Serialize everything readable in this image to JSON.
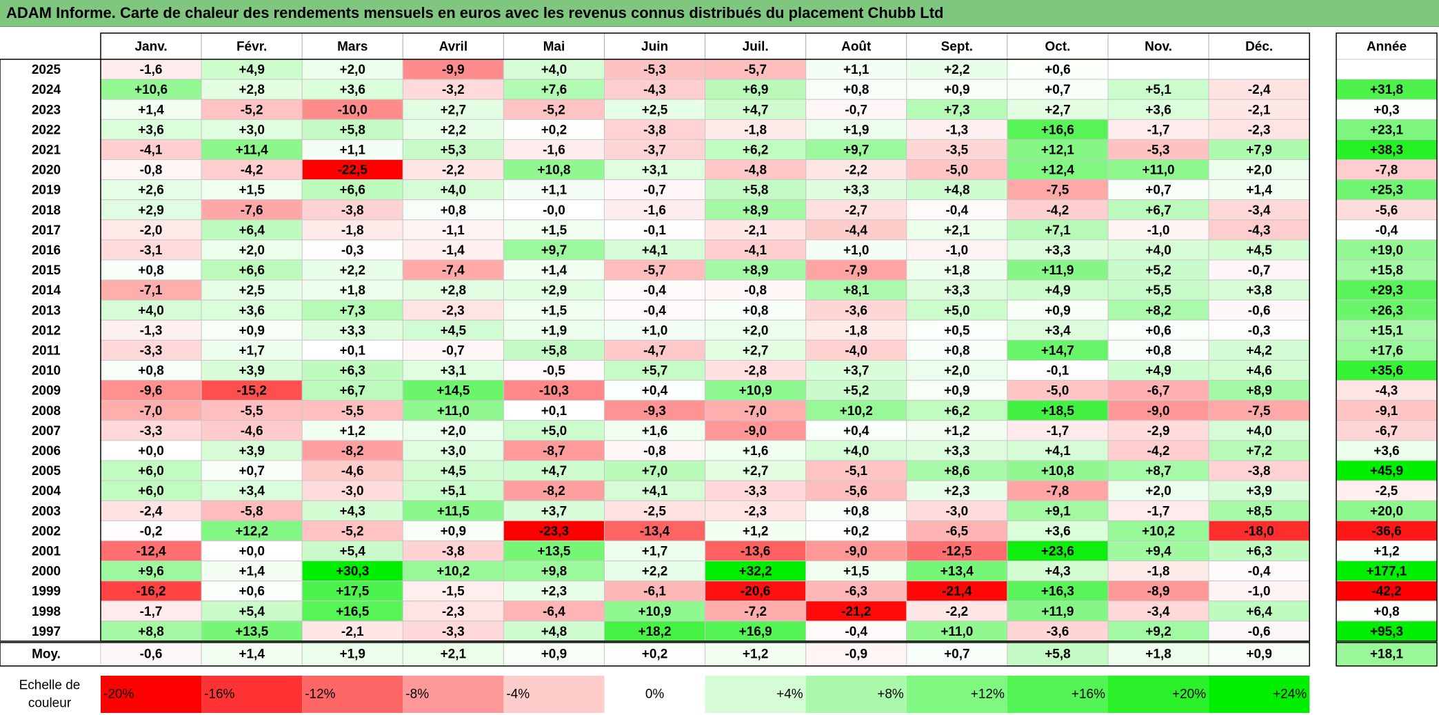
{
  "title": "ADAM Informe. Carte de chaleur des rendements mensuels en euros avec les revenus connus distribués du placement Chubb Ltd",
  "chart_data": {
    "type": "heatmap",
    "title": "ADAM Informe. Carte de chaleur des rendements mensuels en euros avec les revenus connus distribués du placement Chubb Ltd",
    "months": [
      "Janv.",
      "Févr.",
      "Mars",
      "Avril",
      "Mai",
      "Juin",
      "Juil.",
      "Août",
      "Sept.",
      "Oct.",
      "Nov.",
      "Déc."
    ],
    "year_label": "Année",
    "rows": [
      {
        "year": "2025",
        "values": [
          "-1,6",
          "+4,9",
          "+2,0",
          "-9,9",
          "+4,0",
          "-5,3",
          "-5,7",
          "+1,1",
          "+2,2",
          "+0,6",
          "",
          ""
        ],
        "annual": ""
      },
      {
        "year": "2024",
        "values": [
          "+10,6",
          "+2,8",
          "+3,6",
          "-3,2",
          "+7,6",
          "-4,3",
          "+6,9",
          "+0,8",
          "+0,9",
          "+0,7",
          "+5,1",
          "-2,4"
        ],
        "annual": "+31,8"
      },
      {
        "year": "2023",
        "values": [
          "+1,4",
          "-5,2",
          "-10,0",
          "+2,7",
          "-5,2",
          "+2,5",
          "+4,7",
          "-0,7",
          "+7,3",
          "+2,7",
          "+3,6",
          "-2,1"
        ],
        "annual": "+0,3"
      },
      {
        "year": "2022",
        "values": [
          "+3,6",
          "+3,0",
          "+5,8",
          "+2,2",
          "+0,2",
          "-3,8",
          "-1,8",
          "+1,9",
          "-1,3",
          "+16,6",
          "-1,7",
          "-2,3"
        ],
        "annual": "+23,1"
      },
      {
        "year": "2021",
        "values": [
          "-4,1",
          "+11,4",
          "+1,1",
          "+5,3",
          "-1,6",
          "-3,7",
          "+6,2",
          "+9,7",
          "-3,5",
          "+12,1",
          "-5,3",
          "+7,9"
        ],
        "annual": "+38,3"
      },
      {
        "year": "2020",
        "values": [
          "-0,8",
          "-4,2",
          "-22,5",
          "-2,2",
          "+10,8",
          "+3,1",
          "-4,8",
          "-2,2",
          "-5,0",
          "+12,4",
          "+11,0",
          "+2,0"
        ],
        "annual": "-7,8"
      },
      {
        "year": "2019",
        "values": [
          "+2,6",
          "+1,5",
          "+6,6",
          "+4,0",
          "+1,1",
          "-0,7",
          "+5,8",
          "+3,3",
          "+4,8",
          "-7,5",
          "+0,7",
          "+1,4"
        ],
        "annual": "+25,3"
      },
      {
        "year": "2018",
        "values": [
          "+2,9",
          "-7,6",
          "-3,8",
          "+0,8",
          "-0,0",
          "-1,6",
          "+8,9",
          "-2,7",
          "-0,4",
          "-4,2",
          "+6,7",
          "-3,4"
        ],
        "annual": "-5,6"
      },
      {
        "year": "2017",
        "values": [
          "-2,0",
          "+6,4",
          "-1,8",
          "-1,1",
          "+1,5",
          "-0,1",
          "-2,1",
          "-4,4",
          "+2,1",
          "+7,1",
          "-1,0",
          "-4,3"
        ],
        "annual": "-0,4"
      },
      {
        "year": "2016",
        "values": [
          "-3,1",
          "+2,0",
          "-0,3",
          "-1,4",
          "+9,7",
          "+4,1",
          "-4,1",
          "+1,0",
          "-1,0",
          "+3,3",
          "+4,0",
          "+4,5"
        ],
        "annual": "+19,0"
      },
      {
        "year": "2015",
        "values": [
          "+0,8",
          "+6,6",
          "+2,2",
          "-7,4",
          "+1,4",
          "-5,7",
          "+8,9",
          "-7,9",
          "+1,8",
          "+11,9",
          "+5,2",
          "-0,7"
        ],
        "annual": "+15,8"
      },
      {
        "year": "2014",
        "values": [
          "-7,1",
          "+2,5",
          "+1,8",
          "+2,8",
          "+2,9",
          "-0,4",
          "-0,8",
          "+8,1",
          "+3,3",
          "+4,9",
          "+5,5",
          "+3,8"
        ],
        "annual": "+29,3"
      },
      {
        "year": "2013",
        "values": [
          "+4,0",
          "+3,6",
          "+7,3",
          "-2,3",
          "+1,5",
          "-0,4",
          "+0,8",
          "-3,6",
          "+5,0",
          "+0,9",
          "+8,2",
          "-0,6"
        ],
        "annual": "+26,3"
      },
      {
        "year": "2012",
        "values": [
          "-1,3",
          "+0,9",
          "+3,3",
          "+4,5",
          "+1,9",
          "+1,0",
          "+2,0",
          "-1,8",
          "+0,5",
          "+3,4",
          "+0,6",
          "-0,3"
        ],
        "annual": "+15,1"
      },
      {
        "year": "2011",
        "values": [
          "-3,3",
          "+1,7",
          "+0,1",
          "-0,7",
          "+5,8",
          "-4,7",
          "+2,7",
          "-4,0",
          "+0,8",
          "+14,7",
          "+0,8",
          "+4,2"
        ],
        "annual": "+17,6"
      },
      {
        "year": "2010",
        "values": [
          "+0,8",
          "+3,9",
          "+6,3",
          "+3,1",
          "-0,5",
          "+5,7",
          "-2,8",
          "+3,7",
          "+2,0",
          "-0,1",
          "+4,9",
          "+4,6"
        ],
        "annual": "+35,6"
      },
      {
        "year": "2009",
        "values": [
          "-9,6",
          "-15,2",
          "+6,7",
          "+14,5",
          "-10,3",
          "+0,4",
          "+10,9",
          "+5,2",
          "+0,9",
          "-5,0",
          "-6,7",
          "+8,9"
        ],
        "annual": "-4,3"
      },
      {
        "year": "2008",
        "values": [
          "-7,0",
          "-5,5",
          "-5,5",
          "+11,0",
          "+0,1",
          "-9,3",
          "-7,0",
          "+10,2",
          "+6,2",
          "+18,5",
          "-9,0",
          "-7,5"
        ],
        "annual": "-9,1"
      },
      {
        "year": "2007",
        "values": [
          "-3,3",
          "-4,6",
          "+1,2",
          "+2,0",
          "+5,0",
          "+1,6",
          "-9,0",
          "+0,4",
          "+1,2",
          "-1,7",
          "-2,9",
          "+4,0"
        ],
        "annual": "-6,7"
      },
      {
        "year": "2006",
        "values": [
          "+0,0",
          "+3,9",
          "-8,2",
          "+3,0",
          "-8,7",
          "-0,8",
          "+1,6",
          "+4,0",
          "+3,3",
          "+4,1",
          "-4,2",
          "+7,2"
        ],
        "annual": "+3,6"
      },
      {
        "year": "2005",
        "values": [
          "+6,0",
          "+0,7",
          "-4,6",
          "+4,5",
          "+4,7",
          "+7,0",
          "+2,7",
          "-5,1",
          "+8,6",
          "+10,8",
          "+8,7",
          "-3,8"
        ],
        "annual": "+45,9"
      },
      {
        "year": "2004",
        "values": [
          "+6,0",
          "+3,4",
          "-3,0",
          "+5,1",
          "-8,2",
          "+4,1",
          "-3,3",
          "-5,6",
          "+2,3",
          "-7,8",
          "+2,0",
          "+3,9"
        ],
        "annual": "-2,5"
      },
      {
        "year": "2003",
        "values": [
          "-2,4",
          "-5,8",
          "+4,3",
          "+11,5",
          "+3,7",
          "-2,5",
          "-2,3",
          "+0,8",
          "-3,0",
          "+9,1",
          "-1,7",
          "+8,5"
        ],
        "annual": "+20,0"
      },
      {
        "year": "2002",
        "values": [
          "-0,2",
          "+12,2",
          "-5,2",
          "+0,9",
          "-23,3",
          "-13,4",
          "+1,2",
          "+0,2",
          "-6,5",
          "+3,6",
          "+10,2",
          "-18,0"
        ],
        "annual": "-36,6"
      },
      {
        "year": "2001",
        "values": [
          "-12,4",
          "+0,0",
          "+5,4",
          "-3,8",
          "+13,5",
          "+1,7",
          "-13,6",
          "-9,0",
          "-12,5",
          "+23,6",
          "+9,4",
          "+6,3"
        ],
        "annual": "+1,2"
      },
      {
        "year": "2000",
        "values": [
          "+9,6",
          "+1,4",
          "+30,3",
          "+10,2",
          "+9,8",
          "+2,2",
          "+32,2",
          "+1,5",
          "+13,4",
          "+4,3",
          "-1,8",
          "-0,4"
        ],
        "annual": "+177,1"
      },
      {
        "year": "1999",
        "values": [
          "-16,2",
          "+0,6",
          "+17,5",
          "-1,5",
          "+2,3",
          "-6,1",
          "-20,6",
          "-6,3",
          "-21,4",
          "+16,3",
          "-8,9",
          "-1,0"
        ],
        "annual": "-42,2"
      },
      {
        "year": "1998",
        "values": [
          "-1,7",
          "+5,4",
          "+16,5",
          "-2,3",
          "-6,4",
          "+10,9",
          "-7,2",
          "-21,2",
          "-2,2",
          "+11,9",
          "-3,4",
          "+6,4"
        ],
        "annual": "+0,8"
      },
      {
        "year": "1997",
        "values": [
          "+8,8",
          "+13,5",
          "-2,1",
          "-3,3",
          "+4,8",
          "+18,2",
          "+16,9",
          "-0,4",
          "+11,0",
          "-3,6",
          "+9,2",
          "-0,6"
        ],
        "annual": "+95,3"
      }
    ],
    "average": {
      "label": "Moy.",
      "values": [
        "-0,6",
        "+1,4",
        "+1,9",
        "+2,1",
        "+0,9",
        "+0,2",
        "+1,2",
        "-0,9",
        "+0,7",
        "+5,8",
        "+1,8",
        "+0,9"
      ],
      "annual": "+18,1"
    },
    "color_scale": {
      "label_line1": "Echelle de",
      "label_line2": "couleur",
      "stops": [
        "-20%",
        "-16%",
        "-12%",
        "-8%",
        "-4%",
        "0%",
        "+4%",
        "+8%",
        "+12%",
        "+16%",
        "+20%",
        "+24%"
      ]
    },
    "colors": {
      "negative_max": "#ff0000",
      "neutral": "#ffffff",
      "positive_max": "#00ee00",
      "title_bg": "#7fc77f"
    }
  }
}
